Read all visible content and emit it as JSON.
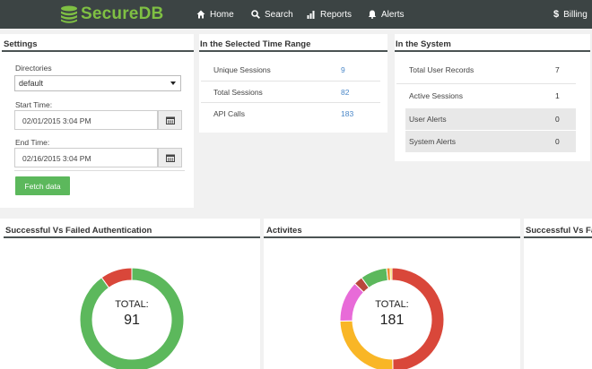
{
  "app": {
    "name_part1": "Secure",
    "name_part2": "DB"
  },
  "nav": {
    "home": "Home",
    "search": "Search",
    "reports": "Reports",
    "alerts": "Alerts",
    "billing": "Billing"
  },
  "settings": {
    "title": "Settings",
    "directories_label": "Directories",
    "directory_value": "default",
    "start_label": "Start Time:",
    "start_value": "02/01/2015 3:04 PM",
    "end_label": "End Time:",
    "end_value": "02/16/2015 3:04 PM",
    "fetch_label": "Fetch data"
  },
  "range": {
    "title": "In the Selected Time Range",
    "rows": [
      {
        "label": "Unique Sessions",
        "value": "9"
      },
      {
        "label": "Total Sessions",
        "value": "82"
      },
      {
        "label": "API Calls",
        "value": "183"
      }
    ]
  },
  "system": {
    "title": "In the System",
    "rows": [
      {
        "label": "Total User Records",
        "value": "7"
      },
      {
        "label": "Active Sessions",
        "value": "1"
      },
      {
        "label": "User Alerts",
        "value": "0"
      },
      {
        "label": "System Alerts",
        "value": "0"
      }
    ]
  },
  "charts": {
    "auth": {
      "title": "Successful Vs Failed Authentication",
      "total_label": "TOTAL:",
      "total": "91"
    },
    "activities": {
      "title": "Activites",
      "total_label": "TOTAL:",
      "total": "181"
    },
    "third": {
      "title": "Successful Vs Fa"
    }
  },
  "chart_data": [
    {
      "type": "pie",
      "title": "Successful Vs Failed Authentication",
      "slices": [
        {
          "value": 82,
          "color": "#5cb85c"
        },
        {
          "value": 9,
          "color": "#d9473a"
        }
      ]
    },
    {
      "type": "pie",
      "title": "Activites",
      "slices": [
        {
          "value": 90,
          "color": "#d9473a"
        },
        {
          "value": 45,
          "color": "#f9b626"
        },
        {
          "value": 23,
          "color": "#e86bd8"
        },
        {
          "value": 5,
          "color": "#b9483c"
        },
        {
          "value": 15,
          "color": "#5cb85c"
        },
        {
          "value": 2,
          "color": "#f28b2e"
        },
        {
          "value": 1,
          "color": "#f5d11c"
        }
      ]
    }
  ]
}
